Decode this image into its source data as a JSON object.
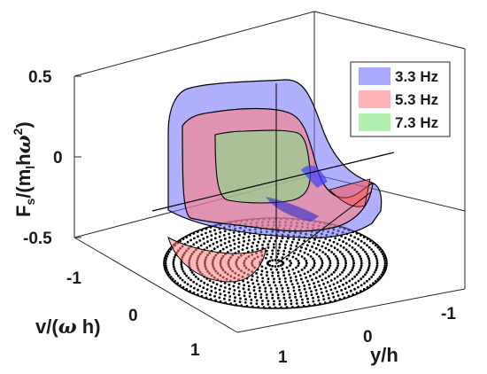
{
  "chart_data": {
    "type": "3d-surface",
    "title": "",
    "zlabel": {
      "base": "F",
      "sub_s": "s",
      "mid": "/(m",
      "sub_l": "l",
      "mid2": "h",
      "omega": "ω",
      "sup": "2",
      "close": ")"
    },
    "xlabel": "y/h",
    "ylabel": {
      "base": "v/(",
      "omega": "ω",
      "rest": " h)"
    },
    "zticks": [
      "0.5",
      "0",
      "-0.5"
    ],
    "zlim": [
      -0.5,
      0.5
    ],
    "yticks": [
      "-1",
      "0",
      "1"
    ],
    "xticks": [
      "1",
      "0",
      "-1"
    ],
    "series": [
      {
        "name": "3.3 Hz",
        "color": "#6f6fff"
      },
      {
        "name": "5.3 Hz",
        "color": "#ff7f7f"
      },
      {
        "name": "7.3 Hz",
        "color": "#7fe67f"
      }
    ],
    "legend_position": "top-right",
    "grid": false,
    "base_pattern": "concentric dotted rings (projection of the phase-space trajectory)"
  }
}
